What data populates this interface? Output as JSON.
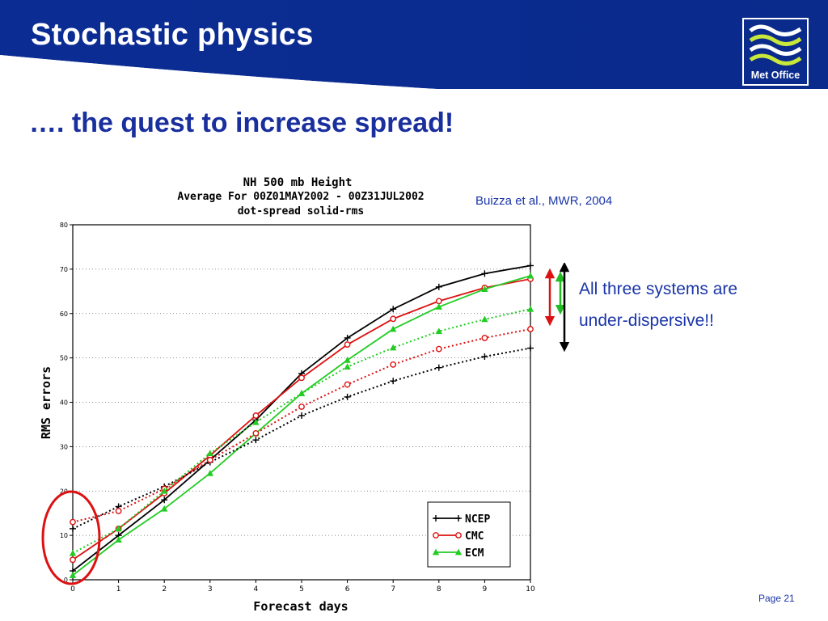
{
  "slide": {
    "title": "Stochastic physics",
    "subtitle": "…. the quest to increase spread!",
    "citation": "Buizza et al., MWR, 2004",
    "callout_line1": "All three systems are",
    "callout_line2": "under-dispersive!!",
    "page": "Page 21",
    "logo_text": "Met Office",
    "colors": {
      "header": "#0b2c93",
      "text": "#1a35a8",
      "annotation_red": "#dd1111",
      "annotation_green": "#22bb22"
    }
  },
  "chart_data": {
    "type": "line",
    "title": "NH 500 mb Height",
    "subtitle_line1": "Average For 00Z01MAY2002 - 00Z31JUL2002",
    "subtitle_line2": "dot-spread solid-rms",
    "xlabel": "Forecast days",
    "ylabel": "RMS errors",
    "xlim": [
      0,
      10
    ],
    "ylim": [
      0,
      80
    ],
    "x_ticks": [
      "0",
      "1",
      "2",
      "3",
      "4",
      "5",
      "6",
      "7",
      "8",
      "9",
      "10"
    ],
    "y_ticks": [
      "0",
      "10",
      "20",
      "30",
      "40",
      "50",
      "60",
      "70",
      "80"
    ],
    "grid": true,
    "legend_position": "bottom-right",
    "x": [
      0,
      1,
      2,
      3,
      4,
      5,
      6,
      7,
      8,
      9,
      10
    ],
    "series": [
      {
        "name": "NCEP",
        "kind": "rms",
        "style": "solid",
        "color": "#000000",
        "marker": "plus",
        "values": [
          2,
          10,
          18,
          27,
          36,
          46.5,
          54.5,
          61,
          66,
          69,
          70.8
        ]
      },
      {
        "name": "CMC",
        "kind": "rms",
        "style": "solid",
        "color": "#dd1111",
        "marker": "circle",
        "values": [
          4.5,
          11.5,
          19.5,
          28,
          37,
          45.5,
          53,
          58.8,
          62.8,
          65.8,
          67.8
        ]
      },
      {
        "name": "ECM",
        "kind": "rms",
        "style": "solid",
        "color": "#22cc22",
        "marker": "tri",
        "values": [
          1,
          9,
          16,
          24,
          33,
          42,
          49.5,
          56.5,
          61.5,
          65.5,
          68.5
        ]
      },
      {
        "name": "NCEP",
        "kind": "spread",
        "style": "dotted",
        "color": "#000000",
        "marker": "plus",
        "values": [
          11.5,
          16.5,
          21,
          26.5,
          31.5,
          37,
          41.2,
          44.8,
          47.8,
          50.3,
          52.2
        ]
      },
      {
        "name": "CMC",
        "kind": "spread",
        "style": "dotted",
        "color": "#dd1111",
        "marker": "circle",
        "values": [
          13,
          15.5,
          20.5,
          27,
          33,
          39,
          44,
          48.5,
          52,
          54.5,
          56.5
        ]
      },
      {
        "name": "ECM",
        "kind": "spread",
        "style": "dotted",
        "color": "#22cc22",
        "marker": "tri",
        "values": [
          6,
          11.5,
          20,
          28.5,
          35.5,
          42,
          48,
          52.3,
          56,
          58.7,
          61
        ]
      }
    ]
  }
}
